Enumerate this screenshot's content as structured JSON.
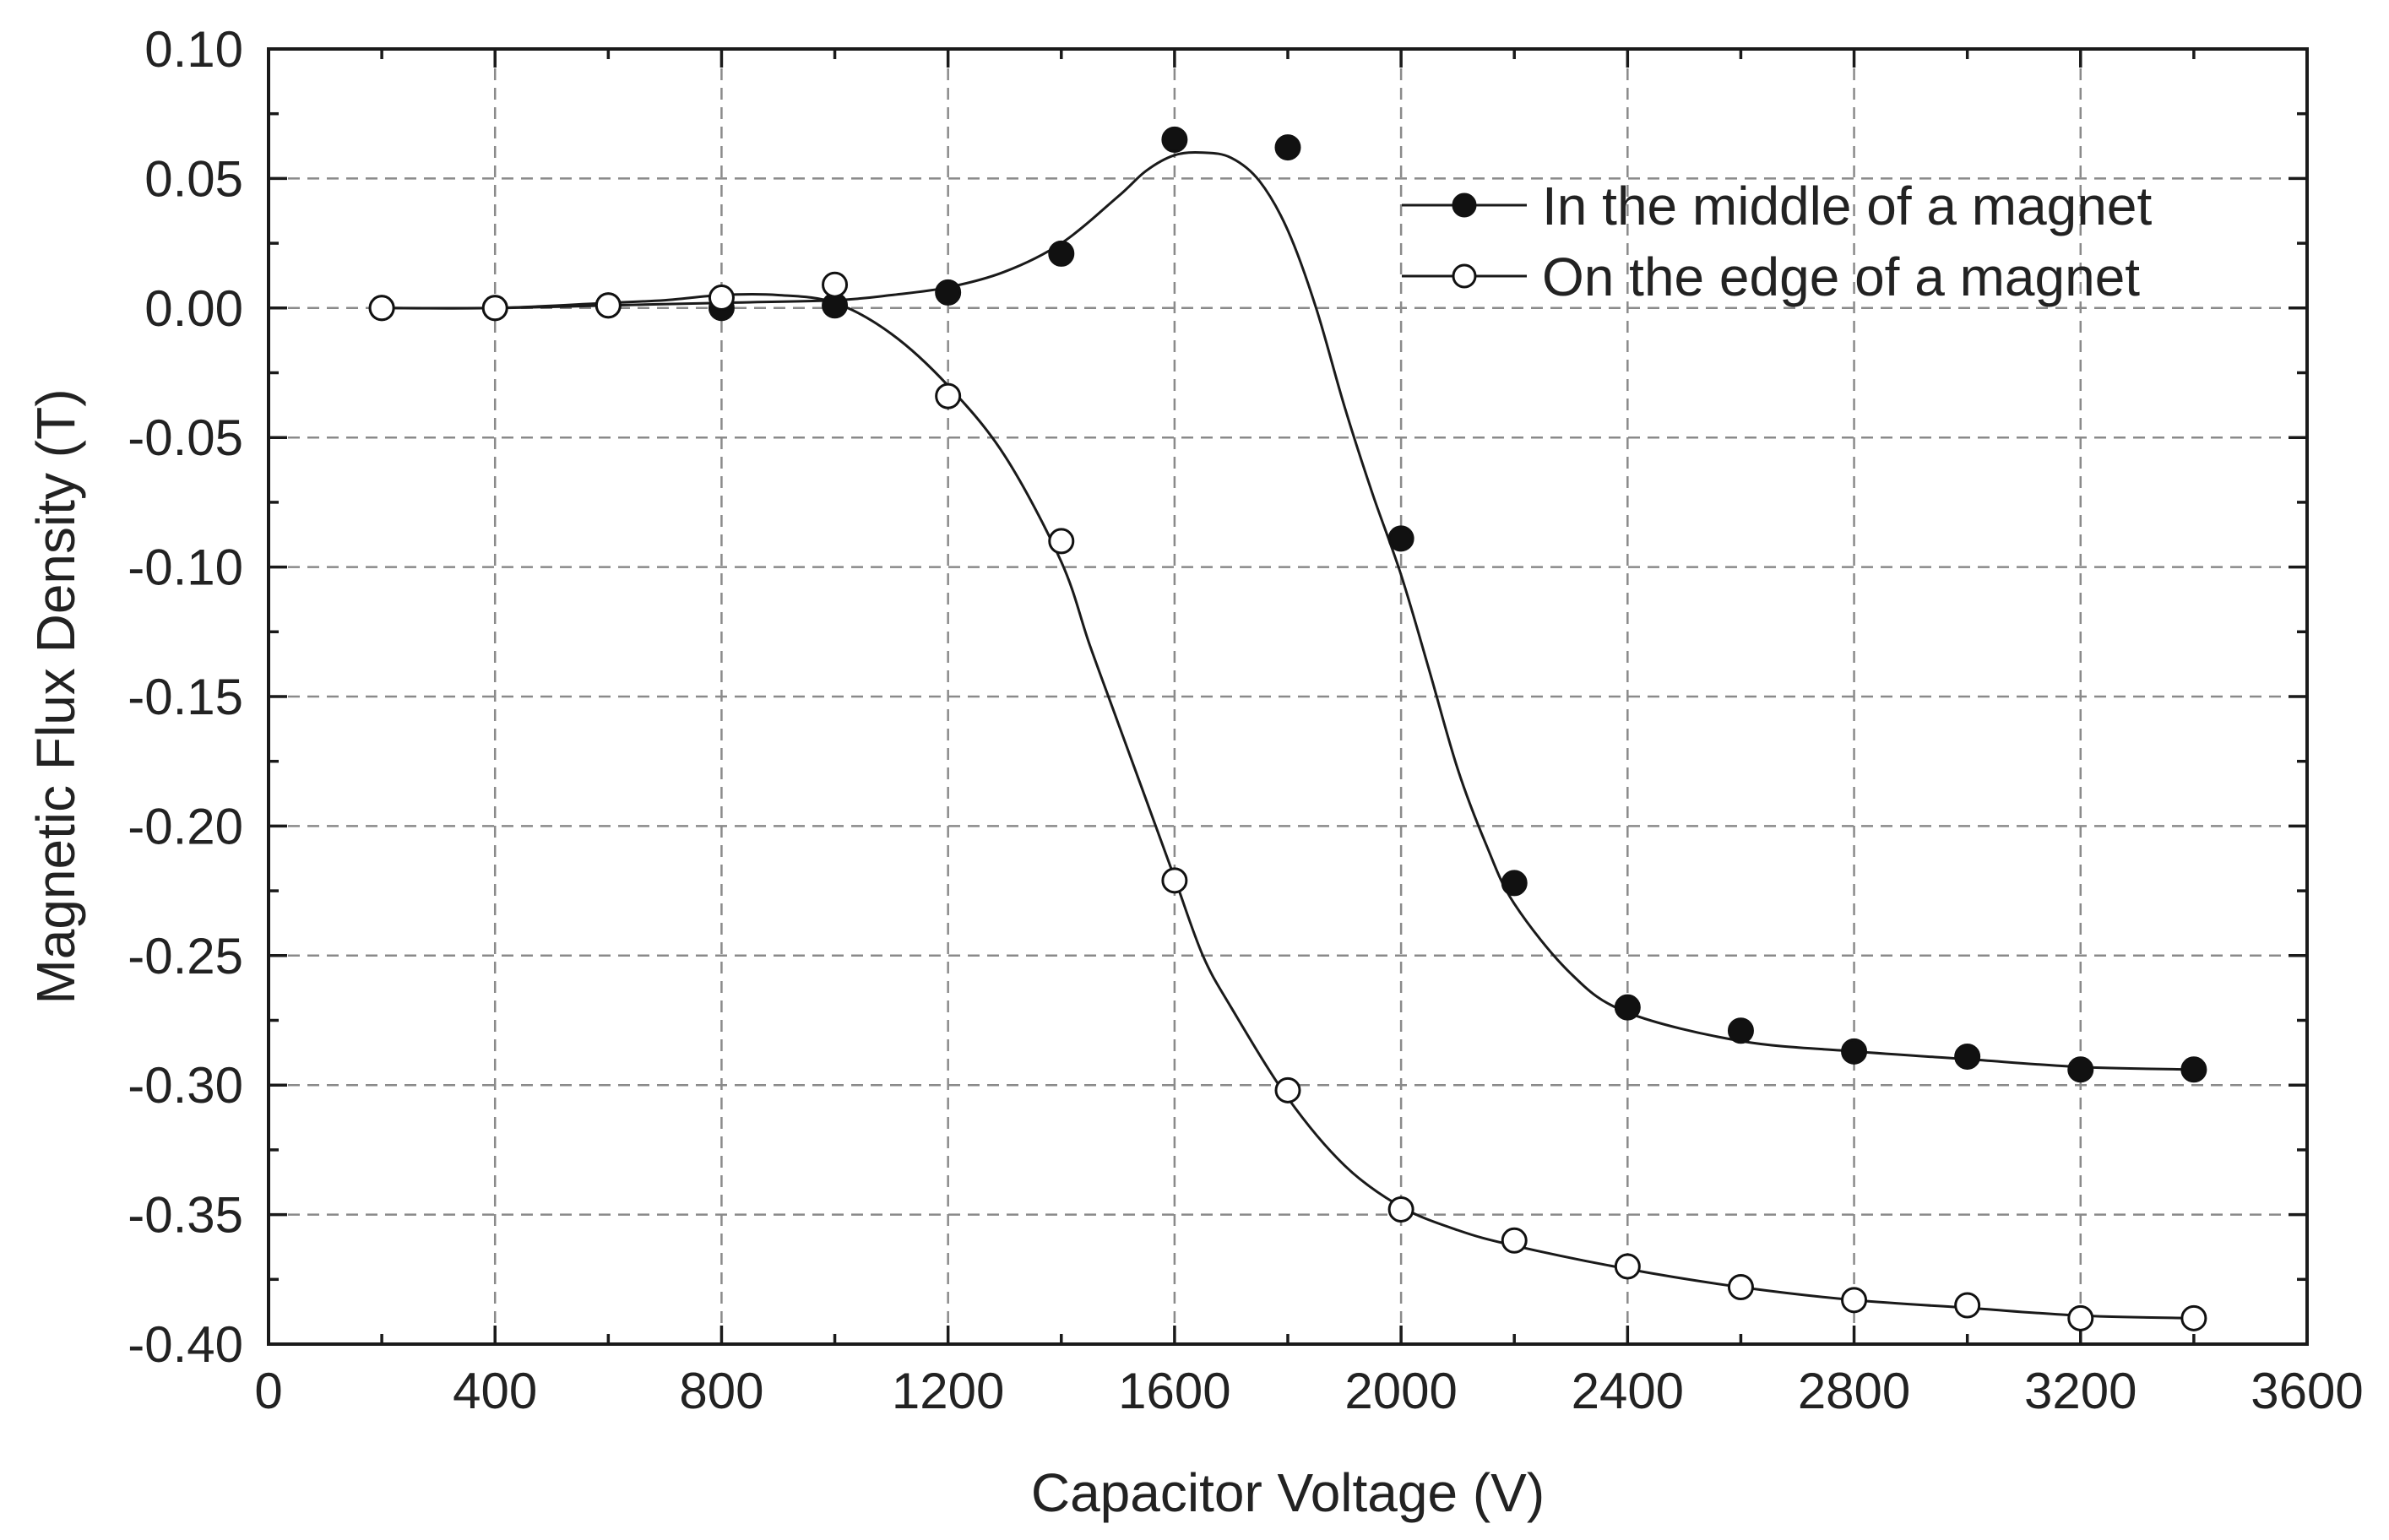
{
  "chart_data": {
    "type": "scatter",
    "title": "",
    "xlabel": "Capacitor Voltage (V)",
    "ylabel": "Magnetic Flux Density (T)",
    "xlim": [
      0,
      3600
    ],
    "ylim": [
      -0.4,
      0.1
    ],
    "x_ticks": [
      0,
      400,
      800,
      1200,
      1600,
      2000,
      2400,
      2800,
      3200,
      3600
    ],
    "x_tick_labels": [
      "0",
      "400",
      "800",
      "1200",
      "1600",
      "2000",
      "2400",
      "2800",
      "3200",
      "3600"
    ],
    "y_ticks": [
      0.1,
      0.05,
      0.0,
      -0.05,
      -0.1,
      -0.15,
      -0.2,
      -0.25,
      -0.3,
      -0.35,
      -0.4
    ],
    "y_tick_labels": [
      "0.10",
      "0.05",
      "0.00",
      "-0.05",
      "-0.10",
      "-0.15",
      "-0.20",
      "-0.25",
      "-0.30",
      "-0.35",
      "-0.40"
    ],
    "grid": true,
    "legend_position": "top-right",
    "series": [
      {
        "name": "In the middle of a magnet",
        "marker": "filled-circle",
        "x": [
          200,
          400,
          600,
          800,
          1000,
          1200,
          1400,
          1600,
          1800,
          2000,
          2200,
          2400,
          2600,
          2800,
          3000,
          3200,
          3400
        ],
        "y": [
          0.0,
          0.0,
          0.001,
          0.0,
          0.001,
          0.006,
          0.021,
          0.065,
          0.062,
          -0.089,
          -0.222,
          -0.27,
          -0.279,
          -0.287,
          -0.289,
          -0.294,
          -0.294
        ],
        "fit_x": [
          200,
          400,
          600,
          800,
          1000,
          1100,
          1200,
          1300,
          1400,
          1500,
          1550,
          1600,
          1650,
          1700,
          1750,
          1800,
          1850,
          1900,
          1950,
          2000,
          2050,
          2100,
          2150,
          2200,
          2300,
          2400,
          2600,
          2800,
          3000,
          3200,
          3400
        ],
        "fit_y": [
          0.0,
          0.0,
          0.001,
          0.002,
          0.003,
          0.005,
          0.008,
          0.014,
          0.025,
          0.043,
          0.053,
          0.059,
          0.06,
          0.058,
          0.049,
          0.03,
          0.0,
          -0.038,
          -0.072,
          -0.103,
          -0.14,
          -0.178,
          -0.207,
          -0.23,
          -0.257,
          -0.272,
          -0.283,
          -0.287,
          -0.29,
          -0.293,
          -0.294
        ]
      },
      {
        "name": "On the edge of a magnet",
        "marker": "open-circle",
        "x": [
          200,
          400,
          600,
          800,
          1000,
          1200,
          1400,
          1600,
          1800,
          2000,
          2200,
          2400,
          2600,
          2800,
          3000,
          3200,
          3400
        ],
        "y": [
          0.0,
          0.0,
          0.001,
          0.004,
          0.009,
          -0.034,
          -0.09,
          -0.221,
          -0.302,
          -0.348,
          -0.36,
          -0.37,
          -0.378,
          -0.383,
          -0.385,
          -0.39,
          -0.39
        ],
        "fit_x": [
          200,
          400,
          600,
          700,
          800,
          900,
          1000,
          1100,
          1200,
          1300,
          1400,
          1450,
          1500,
          1550,
          1600,
          1650,
          1700,
          1800,
          1900,
          2000,
          2100,
          2200,
          2400,
          2600,
          2800,
          3000,
          3200,
          3400
        ],
        "fit_y": [
          0.0,
          0.0,
          0.002,
          0.003,
          0.005,
          0.005,
          0.002,
          -0.01,
          -0.03,
          -0.057,
          -0.098,
          -0.13,
          -0.16,
          -0.19,
          -0.22,
          -0.25,
          -0.27,
          -0.305,
          -0.331,
          -0.347,
          -0.356,
          -0.362,
          -0.371,
          -0.378,
          -0.383,
          -0.386,
          -0.389,
          -0.39
        ]
      }
    ]
  }
}
